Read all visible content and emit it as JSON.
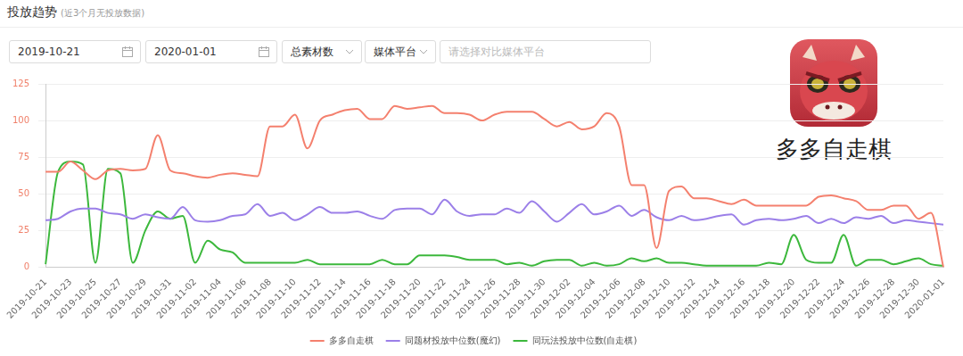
{
  "header": {
    "title": "投放趋势",
    "subtitle": "(近3个月无投放数据)"
  },
  "controls": {
    "start_date": "2019-10-21",
    "end_date": "2020-01-01",
    "metric": "总素材数",
    "platform": "媒体平台",
    "compare_placeholder": "请选择对比媒体平台"
  },
  "app": {
    "name": "多多自走棋"
  },
  "chart_data": {
    "type": "line",
    "categories": [
      "2019-10-21",
      null,
      "2019-10-23",
      null,
      "2019-10-25",
      null,
      "2019-10-27",
      null,
      "2019-10-29",
      null,
      "2019-10-31",
      null,
      "2019-11-02",
      null,
      "2019-11-04",
      null,
      "2019-11-06",
      null,
      "2019-11-08",
      null,
      "2019-11-10",
      null,
      "2019-11-12",
      null,
      "2019-11-14",
      null,
      "2019-11-16",
      null,
      "2019-11-18",
      null,
      "2019-11-20",
      null,
      "2019-11-22",
      null,
      "2019-11-24",
      null,
      "2019-11-26",
      null,
      "2019-11-28",
      null,
      "2019-11-30",
      null,
      "2019-12-02",
      null,
      "2019-12-04",
      null,
      "2019-12-06",
      null,
      "2019-12-08",
      null,
      "2019-12-10",
      null,
      "2019-12-12",
      null,
      "2019-12-14",
      null,
      "2019-12-16",
      null,
      "2019-12-18",
      null,
      "2019-12-20",
      null,
      "2019-12-22",
      null,
      "2019-12-24",
      null,
      "2019-12-26",
      null,
      "2019-12-28",
      null,
      "2019-12-30",
      null,
      "2020-01-01"
    ],
    "series": [
      {
        "name": "多多自走棋",
        "color": "#f4806e",
        "values": [
          65,
          65,
          72,
          66,
          60,
          66,
          67,
          66,
          67,
          90,
          66,
          64,
          62,
          61,
          63,
          64,
          63,
          62,
          96,
          96,
          104,
          81,
          100,
          104,
          107,
          108,
          101,
          101,
          110,
          108,
          109,
          110,
          105,
          105,
          104,
          100,
          104,
          106,
          106,
          106,
          101,
          96,
          99,
          94,
          96,
          105,
          96,
          56,
          56,
          13,
          52,
          55,
          47,
          47,
          45,
          43,
          46,
          42,
          42,
          42,
          42,
          42,
          48,
          49,
          47,
          45,
          39,
          39,
          42,
          42,
          33,
          37,
          0
        ]
      },
      {
        "name": "同题材投放中位数(魔幻)",
        "color": "#9b7fe8",
        "values": [
          32,
          33,
          38,
          40,
          40,
          37,
          36,
          33,
          36,
          34,
          33,
          41,
          32,
          31,
          32,
          35,
          36,
          43,
          35,
          37,
          32,
          36,
          41,
          37,
          37,
          38,
          35,
          33,
          39,
          40,
          40,
          36,
          46,
          38,
          35,
          36,
          36,
          40,
          37,
          45,
          38,
          31,
          37,
          43,
          36,
          38,
          42,
          35,
          39,
          34,
          32,
          35,
          32,
          33,
          35,
          36,
          29,
          32,
          33,
          32,
          33,
          35,
          30,
          33,
          30,
          34,
          33,
          35,
          30,
          32,
          31,
          30,
          29
        ]
      },
      {
        "name": "同玩法投放中位数(自走棋)",
        "color": "#3cb83c",
        "values": [
          2,
          65,
          72,
          70,
          3,
          67,
          64,
          3,
          25,
          38,
          33,
          35,
          3,
          18,
          12,
          10,
          3,
          3,
          3,
          3,
          3,
          5,
          2,
          2,
          2,
          2,
          2,
          5,
          2,
          2,
          8,
          8,
          8,
          7,
          5,
          5,
          5,
          2,
          3,
          1,
          4,
          5,
          5,
          1,
          3,
          1,
          2,
          6,
          4,
          6,
          3,
          3,
          2,
          1,
          1,
          1,
          1,
          1,
          3,
          2,
          22,
          5,
          3,
          3,
          22,
          1,
          5,
          5,
          2,
          4,
          6,
          2,
          1
        ]
      }
    ],
    "ylim": [
      0,
      125
    ],
    "yticks": [
      0,
      25,
      50,
      75,
      100,
      125
    ],
    "grid": true,
    "legend": "bottom"
  }
}
